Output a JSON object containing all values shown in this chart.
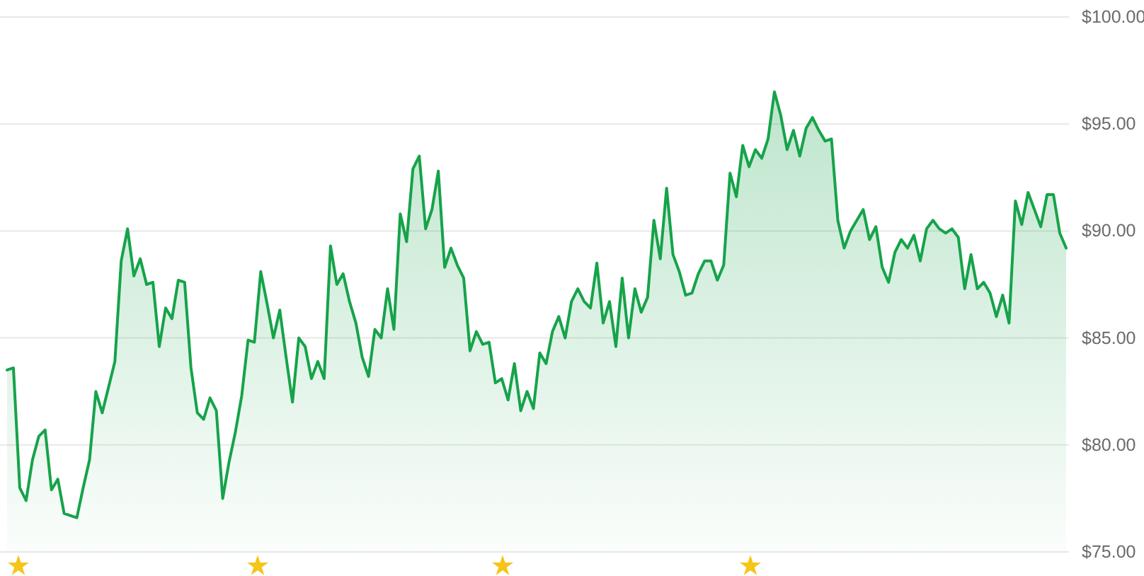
{
  "chart_data": {
    "type": "area",
    "ylim": [
      75,
      100
    ],
    "yticks": [
      {
        "value": 75,
        "label": "$75.00"
      },
      {
        "value": 80,
        "label": "$80.00"
      },
      {
        "value": 85,
        "label": "$85.00"
      },
      {
        "value": 90,
        "label": "$90.00"
      },
      {
        "value": 95,
        "label": "$95.00"
      },
      {
        "value": 100,
        "label": "$100.00"
      }
    ],
    "grid": "y",
    "tick_labels": "y",
    "series": [
      {
        "color": "#16a34a",
        "values": [
          83.5,
          83.6,
          78.0,
          77.4,
          79.3,
          80.4,
          80.7,
          77.9,
          78.4,
          76.8,
          76.7,
          76.6,
          78.0,
          79.3,
          82.5,
          81.5,
          82.7,
          83.9,
          88.6,
          90.1,
          87.9,
          88.7,
          87.5,
          87.6,
          84.6,
          86.4,
          85.9,
          87.7,
          87.6,
          83.6,
          81.5,
          81.2,
          82.2,
          81.6,
          77.5,
          79.2,
          80.6,
          82.3,
          84.9,
          84.8,
          88.1,
          86.6,
          85.0,
          86.3,
          84.1,
          82.0,
          85.0,
          84.6,
          83.1,
          83.9,
          83.1,
          89.3,
          87.5,
          88.0,
          86.7,
          85.7,
          84.1,
          83.2,
          85.4,
          85.0,
          87.3,
          85.4,
          90.8,
          89.5,
          92.9,
          93.5,
          90.1,
          91.0,
          92.8,
          88.3,
          89.2,
          88.4,
          87.8,
          84.4,
          85.3,
          84.7,
          84.8,
          82.9,
          83.1,
          82.1,
          83.8,
          81.6,
          82.5,
          81.7,
          84.3,
          83.8,
          85.3,
          86.0,
          85.0,
          86.7,
          87.3,
          86.7,
          86.4,
          88.5,
          85.7,
          86.7,
          84.6,
          87.8,
          85.0,
          87.3,
          86.2,
          86.9,
          90.5,
          88.7,
          92.0,
          88.9,
          88.1,
          87.0,
          87.1,
          88.0,
          88.6,
          88.6,
          87.7,
          88.4,
          92.7,
          91.6,
          94.0,
          93.0,
          93.8,
          93.4,
          94.3,
          96.5,
          95.4,
          93.8,
          94.7,
          93.5,
          94.8,
          95.3,
          94.7,
          94.2,
          94.3,
          90.5,
          89.2,
          90.0,
          90.5,
          91.0,
          89.6,
          90.2,
          88.3,
          87.6,
          89.0,
          89.6,
          89.2,
          89.8,
          88.6,
          90.1,
          90.5,
          90.1,
          89.9,
          90.1,
          89.7,
          87.3,
          88.9,
          87.3,
          87.6,
          87.1,
          86.0,
          87.0,
          85.7,
          91.4,
          90.3,
          91.8,
          91.0,
          90.2,
          91.7,
          91.7,
          89.9,
          89.2
        ]
      }
    ]
  }
}
